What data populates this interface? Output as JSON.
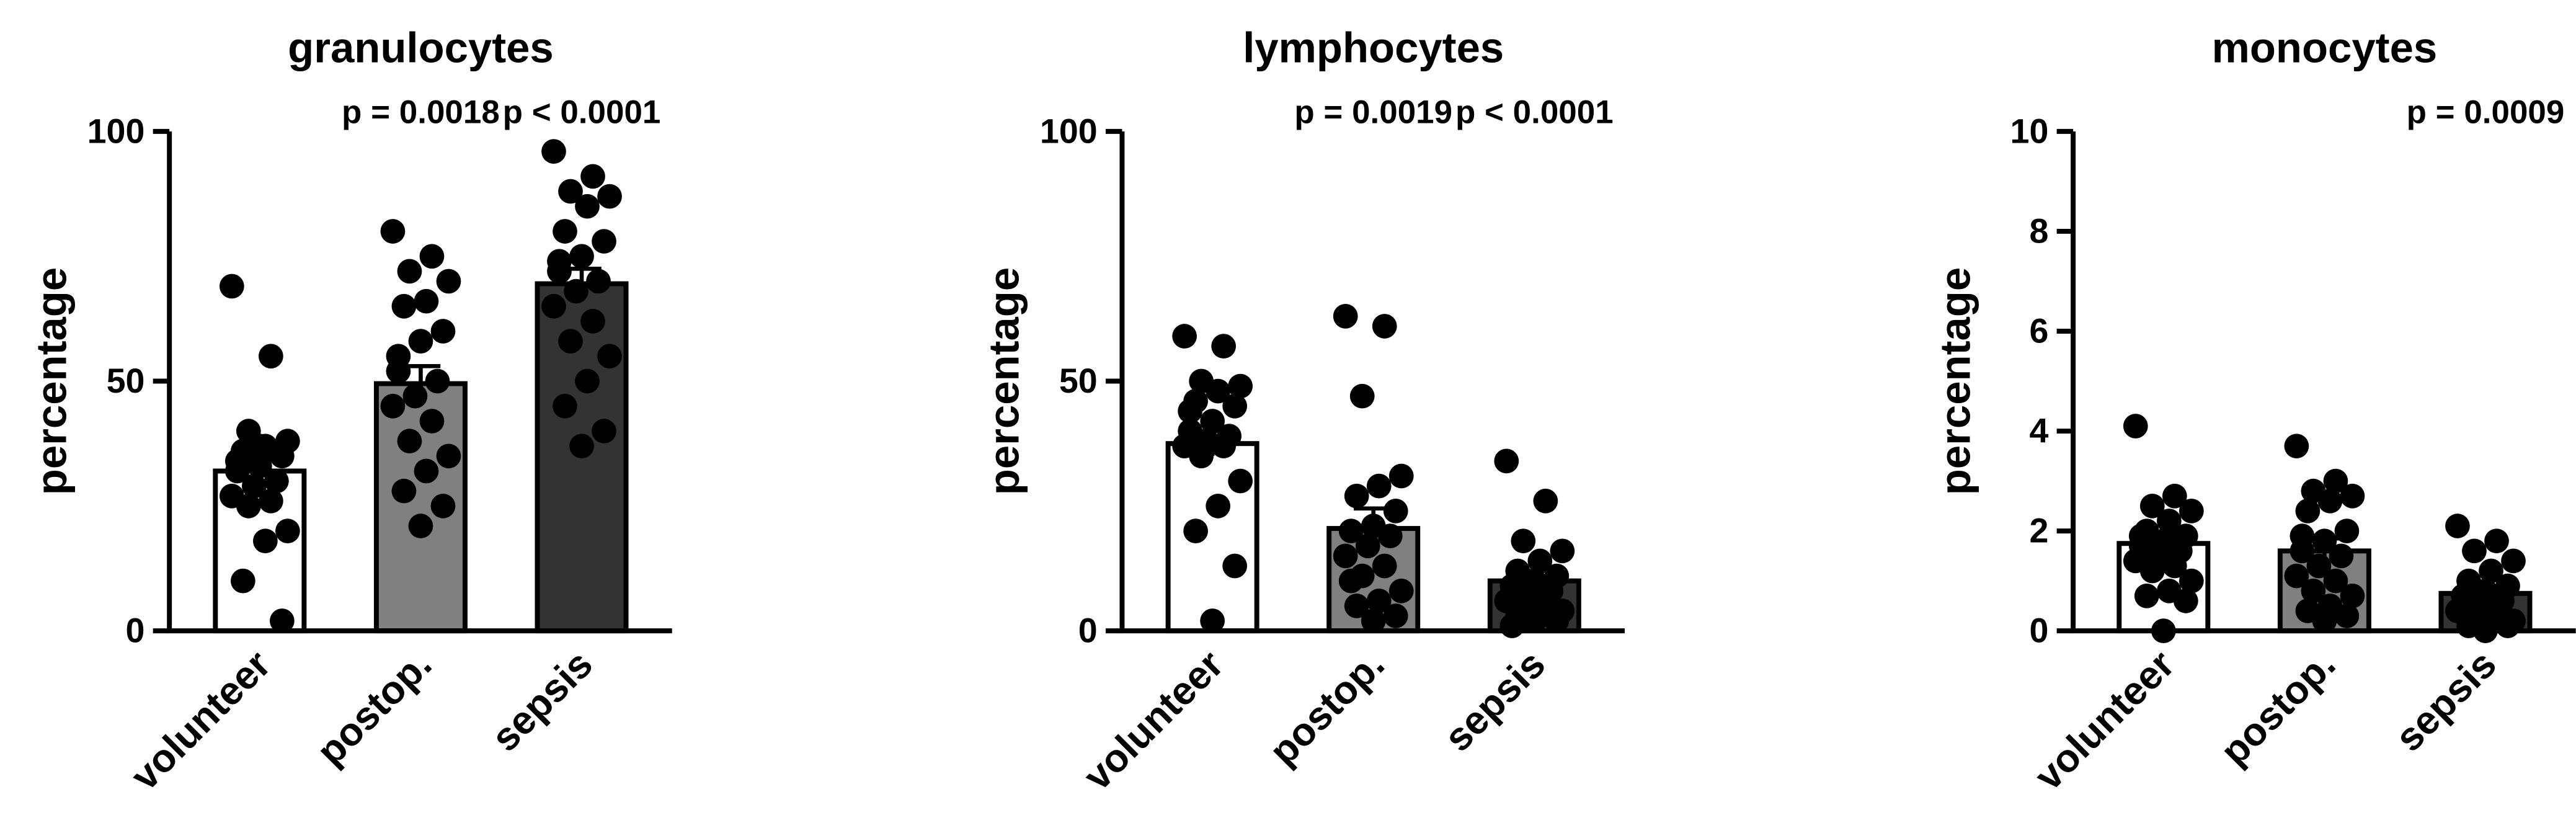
{
  "chart_data": [
    {
      "type": "bar",
      "title": "granulocytes",
      "ylabel": "percentage",
      "categories": [
        "volunteer",
        "postop.",
        "sepsis"
      ],
      "values": [
        32,
        49.5,
        69.5
      ],
      "errors": [
        2.5,
        3.5,
        3
      ],
      "colors": [
        "#ffffff",
        "#808080",
        "#333333"
      ],
      "points": [
        [
          69,
          55,
          40,
          38,
          37,
          36,
          35,
          33,
          32,
          30,
          29,
          27,
          26,
          25,
          20,
          18,
          10,
          2,
          37,
          34
        ],
        [
          80,
          75,
          72,
          70,
          66,
          65,
          60,
          58,
          55,
          50,
          47,
          45,
          42,
          38,
          35,
          32,
          28,
          25,
          21,
          52
        ],
        [
          96,
          91,
          88,
          87,
          85,
          80,
          78,
          75,
          72,
          70,
          68,
          65,
          62,
          58,
          55,
          50,
          45,
          40,
          37,
          74
        ]
      ],
      "annotations": [
        null,
        "p = 0.0018",
        "p < 0.0001"
      ],
      "ylim": [
        0,
        100
      ],
      "yticks": [
        0,
        50,
        100
      ]
    },
    {
      "type": "bar",
      "title": "lymphocytes",
      "ylabel": "percentage",
      "categories": [
        "volunteer",
        "postop.",
        "sepsis"
      ],
      "values": [
        37.5,
        20.5,
        10
      ],
      "errors": [
        2.5,
        4,
        2
      ],
      "colors": [
        "#ffffff",
        "#808080",
        "#333333"
      ],
      "points": [
        [
          59,
          57,
          50,
          49,
          48,
          46,
          45,
          42,
          40,
          39,
          38,
          37,
          37,
          35,
          30,
          25,
          20,
          13,
          2,
          44
        ],
        [
          63,
          61,
          47,
          31,
          29,
          27,
          24,
          21,
          20,
          19,
          17,
          15,
          13,
          11,
          8,
          6,
          5,
          3,
          2,
          10
        ],
        [
          34,
          26,
          18,
          16,
          14,
          12,
          11,
          10,
          9,
          8,
          7,
          6,
          5,
          4,
          4,
          3,
          3,
          2,
          2,
          1
        ]
      ],
      "annotations": [
        null,
        "p = 0.0019",
        "p < 0.0001"
      ],
      "ylim": [
        0,
        100
      ],
      "yticks": [
        0,
        50,
        100
      ]
    },
    {
      "type": "bar",
      "title": "monocytes",
      "ylabel": "percentage",
      "categories": [
        "volunteer",
        "postop.",
        "sepsis"
      ],
      "values": [
        1.75,
        1.6,
        0.75
      ],
      "errors": [
        0.2,
        0.25,
        0.12
      ],
      "colors": [
        "#ffffff",
        "#808080",
        "#333333"
      ],
      "points": [
        [
          4.1,
          2.7,
          2.5,
          2.4,
          2.2,
          2.0,
          1.9,
          1.8,
          1.7,
          1.6,
          1.5,
          1.4,
          1.3,
          1.2,
          1.0,
          0.8,
          0.7,
          0.6,
          0.0,
          1.9
        ],
        [
          3.7,
          3.0,
          2.8,
          2.7,
          2.6,
          2.4,
          2.0,
          1.8,
          1.6,
          1.5,
          1.3,
          1.1,
          1.0,
          0.8,
          0.7,
          0.5,
          0.4,
          0.3,
          0.2,
          1.9
        ],
        [
          2.1,
          1.8,
          1.6,
          1.4,
          1.2,
          1.0,
          0.9,
          0.8,
          0.7,
          0.6,
          0.5,
          0.4,
          0.3,
          0.3,
          0.2,
          0.2,
          0.1,
          0.1,
          0.0,
          0.5
        ]
      ],
      "annotations": [
        null,
        null,
        "p = 0.0009"
      ],
      "ylim": [
        0,
        10
      ],
      "yticks": [
        0,
        2,
        4,
        6,
        8,
        10
      ]
    }
  ]
}
